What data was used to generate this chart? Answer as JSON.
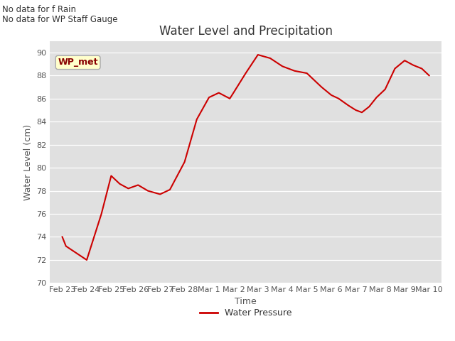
{
  "title": "Water Level and Precipitation",
  "xlabel": "Time",
  "ylabel": "Water Level (cm)",
  "ylim": [
    70,
    91
  ],
  "yticks": [
    70,
    72,
    74,
    76,
    78,
    80,
    82,
    84,
    86,
    88,
    90
  ],
  "line_color": "#cc0000",
  "line_width": 1.5,
  "bg_color": "#e0e0e0",
  "legend_label": "Water Pressure",
  "legend_box_color": "#ffffcc",
  "legend_box_text": "WP_met",
  "legend_box_text_color": "#880000",
  "nodata_text1": "No data for f Rain",
  "nodata_text2": "No data for WP Staff Gauge",
  "x_labels": [
    "Feb 23",
    "Feb 24",
    "Feb 25",
    "Feb 26",
    "Feb 27",
    "Feb 28",
    "Mar 1",
    "Mar 2",
    "Mar 3",
    "Mar 4",
    "Mar 5",
    "Mar 6",
    "Mar 7",
    "Mar 8",
    "Mar 9",
    "Mar 10"
  ],
  "x_tick_pos": [
    0,
    1,
    2,
    3,
    4,
    5,
    6,
    7,
    8,
    9,
    10,
    11,
    12,
    13,
    14,
    15
  ],
  "x_vals": [
    0,
    0.15,
    1.0,
    1.6,
    2.0,
    2.35,
    2.7,
    3.1,
    3.5,
    4.0,
    4.4,
    5.0,
    5.5,
    6.0,
    6.4,
    6.85,
    7.0,
    7.5,
    8.0,
    8.5,
    9.0,
    9.5,
    10.0,
    10.6,
    11.0,
    11.3,
    11.7,
    12.0,
    12.25,
    12.55,
    12.85,
    13.2,
    13.6,
    14.0,
    14.35,
    14.7,
    15.0
  ],
  "y_vals": [
    74.0,
    73.2,
    72.0,
    76.0,
    79.3,
    78.6,
    78.2,
    78.5,
    78.0,
    77.7,
    78.1,
    80.5,
    84.2,
    86.1,
    86.5,
    86.0,
    86.5,
    88.2,
    89.8,
    89.5,
    88.8,
    88.4,
    88.2,
    87.0,
    86.3,
    86.0,
    85.4,
    85.0,
    84.8,
    85.3,
    86.1,
    86.8,
    88.6,
    89.3,
    88.9,
    88.6,
    88.0
  ],
  "title_fontsize": 12,
  "axis_label_fontsize": 9,
  "tick_fontsize": 8,
  "nodata_fontsize": 8.5,
  "legend_fontsize": 9
}
